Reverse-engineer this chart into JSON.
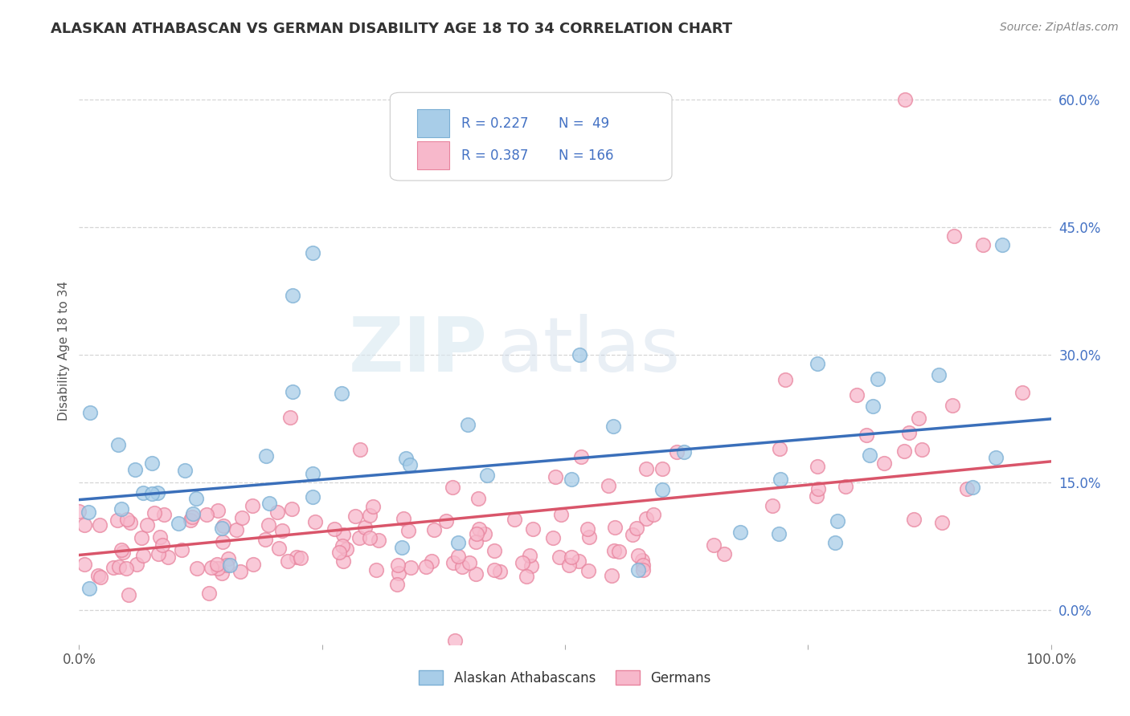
{
  "title": "ALASKAN ATHABASCAN VS GERMAN DISABILITY AGE 18 TO 34 CORRELATION CHART",
  "source_text": "Source: ZipAtlas.com",
  "ylabel": "Disability Age 18 to 34",
  "watermark_ZIP": "ZIP",
  "watermark_atlas": "atlas",
  "xlim": [
    0.0,
    100.0
  ],
  "ylim": [
    -4.0,
    65.0
  ],
  "yticks": [
    0.0,
    15.0,
    30.0,
    45.0,
    60.0
  ],
  "ytick_labels": [
    "0.0%",
    "15.0%",
    "30.0%",
    "45.0%",
    "60.0%"
  ],
  "blue_R": 0.227,
  "blue_N": 49,
  "pink_R": 0.387,
  "pink_N": 166,
  "blue_color": "#a8cde8",
  "blue_edge_color": "#7bafd4",
  "pink_color": "#f7b8cb",
  "pink_edge_color": "#e8849e",
  "blue_line_color": "#3a6fba",
  "pink_line_color": "#d9556a",
  "legend_label_blue": "Alaskan Athabascans",
  "legend_label_pink": "Germans",
  "background_color": "#ffffff",
  "blue_line_start_y": 13.0,
  "blue_line_end_y": 22.5,
  "pink_line_start_y": 6.5,
  "pink_line_end_y": 17.5
}
